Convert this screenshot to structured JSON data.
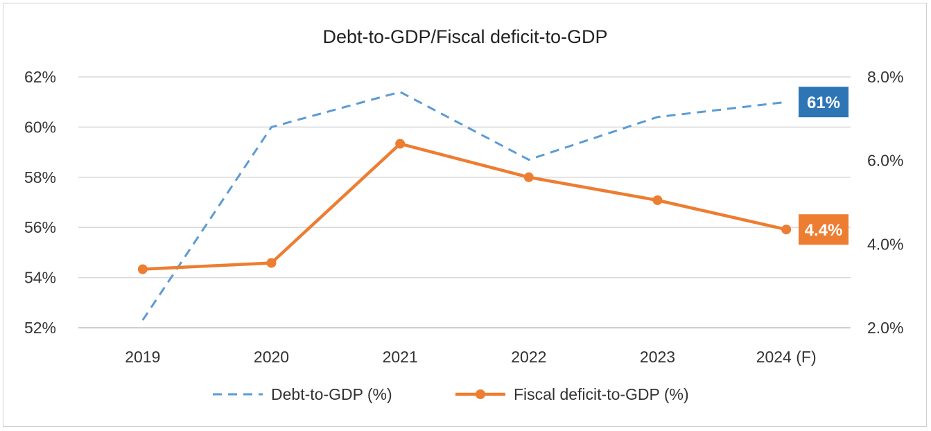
{
  "chart_data": {
    "type": "line",
    "title": "Debt-to-GDP/Fiscal deficit-to-GDP",
    "categories": [
      "2019",
      "2020",
      "2021",
      "2022",
      "2023",
      "2024 (F)"
    ],
    "y_left": {
      "min": 52,
      "max": 62,
      "step": 2,
      "ticks": [
        "52%",
        "54%",
        "56%",
        "58%",
        "60%",
        "62%"
      ]
    },
    "y_right": {
      "min": 2.0,
      "max": 8.0,
      "step": 2.0,
      "ticks": [
        "2.0%",
        "4.0%",
        "6.0%",
        "8.0%"
      ]
    },
    "grid": true,
    "legend_position": "bottom",
    "series": [
      {
        "name": "Debt-to-GDP (%)",
        "axis": "left",
        "style": "dashed",
        "color": "#5b9bd5",
        "values": [
          52.3,
          60.0,
          61.4,
          58.7,
          60.4,
          61.0
        ],
        "end_label": "61%",
        "end_label_color": "#2e75b6"
      },
      {
        "name": "Fiscal deficit-to-GDP (%)",
        "axis": "right",
        "style": "solid-markers",
        "color": "#ed7d31",
        "values": [
          3.4,
          3.55,
          6.4,
          5.6,
          5.05,
          4.35
        ],
        "end_label": "4.4%",
        "end_label_color": "#ed7d31"
      }
    ]
  }
}
